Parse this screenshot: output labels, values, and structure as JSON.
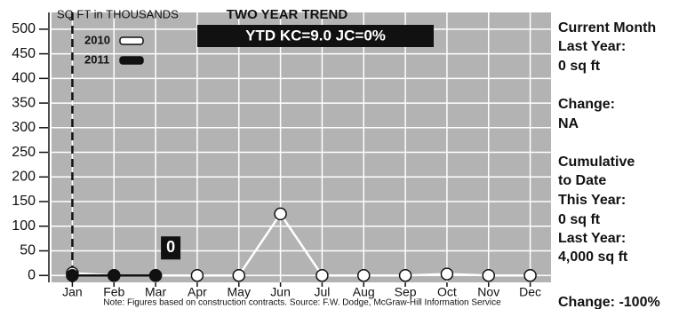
{
  "chart_data": {
    "type": "line",
    "title": "TWO YEAR TREND",
    "subtitle": "YTD KC=9.0 JC=0%",
    "y_label": "SQ FT in THOUSANDS",
    "note": "Note: Figures based on construction contracts. Source: F.W. Dodge, McGraw-Hill Information Service",
    "categories": [
      "Jan",
      "Feb",
      "Mar",
      "Apr",
      "May",
      "Jun",
      "Jul",
      "Aug",
      "Sep",
      "Oct",
      "Nov",
      "Dec"
    ],
    "series": [
      {
        "name": "2010",
        "color": "#ffffff",
        "values": [
          5,
          0,
          0,
          0,
          0,
          125,
          0,
          0,
          0,
          3,
          0,
          0
        ]
      },
      {
        "name": "2011",
        "color": "#111111",
        "values": [
          0,
          0,
          0,
          null,
          null,
          null,
          null,
          null,
          null,
          null,
          null,
          null
        ],
        "data_label_index": 2
      }
    ],
    "ylim": [
      -14,
      534
    ],
    "yticks": [
      0,
      50,
      100,
      150,
      200,
      250,
      300,
      350,
      400,
      450,
      500
    ],
    "grid": true,
    "legend": "upper left",
    "side_panel": [
      "Current Month",
      "Last Year:",
      "0 sq ft",
      "Change:",
      "NA",
      "Cumulative",
      "to Date",
      "This Year:",
      "0 sq ft",
      "Last Year:",
      "4,000 sq ft",
      "Change: -100%"
    ]
  }
}
